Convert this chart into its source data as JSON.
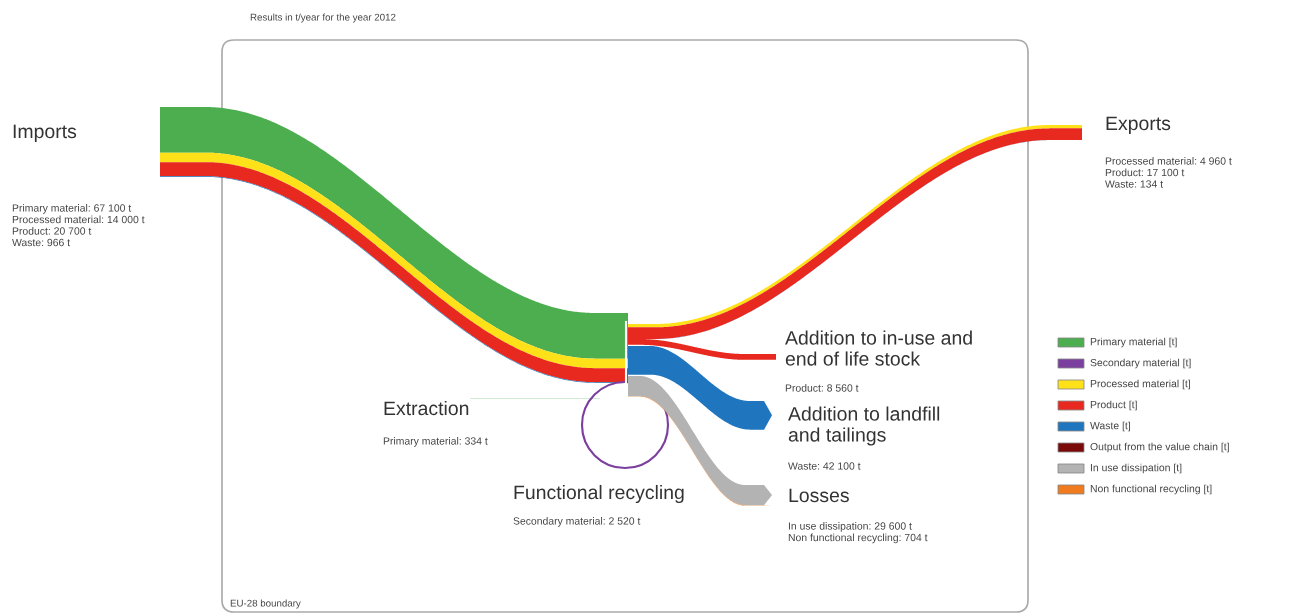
{
  "chart_data": {
    "type": "other",
    "title": "Results in t/year for the year 2012",
    "categories": [
      "Imports",
      "Exports",
      "Extraction",
      "Functional recycling",
      "Addition to in-use and\nend of life stock",
      "Addition to landfill\nand tailings",
      "Losses"
    ],
    "series": [
      {
        "name": "Primary material [t]",
        "color": "#4cae4f",
        "values": [
          67100,
          null,
          334,
          null,
          null,
          null,
          null
        ],
        "value_labels": [
          "Primary material: 67 100 t",
          null,
          "Primary material: 334 t",
          null,
          null,
          null,
          null
        ]
      },
      {
        "name": "Secondary material [t]",
        "color": "#7b3fa0",
        "values": [
          null,
          null,
          null,
          2520,
          null,
          null,
          null
        ],
        "value_labels": [
          null,
          null,
          null,
          "Secondary material: 2 520 t",
          null,
          null,
          null
        ]
      },
      {
        "name": "Processed material [t]",
        "color": "#ffe11a",
        "values": [
          14000,
          4960,
          null,
          null,
          null,
          null,
          null
        ],
        "value_labels": [
          "Processed material: 14 000 t",
          "Processed material: 4 960 t",
          null,
          null,
          null,
          null,
          null
        ]
      },
      {
        "name": "Product [t]",
        "color": "#e8291f",
        "values": [
          20700,
          17100,
          null,
          null,
          8560,
          null,
          null
        ],
        "value_labels": [
          "Product: 20 700 t",
          "Product: 17 100 t",
          null,
          null,
          "Product: 8 560 t",
          null,
          null
        ]
      },
      {
        "name": "Waste [t]",
        "color": "#1f76bf",
        "values": [
          966,
          134,
          null,
          null,
          null,
          42100,
          null
        ],
        "value_labels": [
          "Waste: 966 t",
          "Waste: 134 t",
          null,
          null,
          null,
          "Waste: 42 100 t",
          null
        ]
      },
      {
        "name": "Output from the value chain [t]",
        "color": "#7a0a0a",
        "values": [
          null,
          null,
          null,
          null,
          null,
          null,
          null
        ]
      },
      {
        "name": "In use dissipation [t]",
        "color": "#b3b3b3",
        "values": [
          null,
          null,
          null,
          null,
          null,
          null,
          29600
        ],
        "value_labels": [
          null,
          null,
          null,
          null,
          null,
          null,
          "In use dissipation: 29 600 t"
        ]
      },
      {
        "name": "Non functional recycling [t]",
        "color": "#f07b1e",
        "values": [
          null,
          null,
          null,
          null,
          null,
          null,
          704
        ],
        "value_labels": [
          null,
          null,
          null,
          null,
          null,
          null,
          "Non functional recycling: 704 t"
        ]
      }
    ],
    "annotations": [
      "EU-28 boundary"
    ],
    "legend": "right"
  }
}
